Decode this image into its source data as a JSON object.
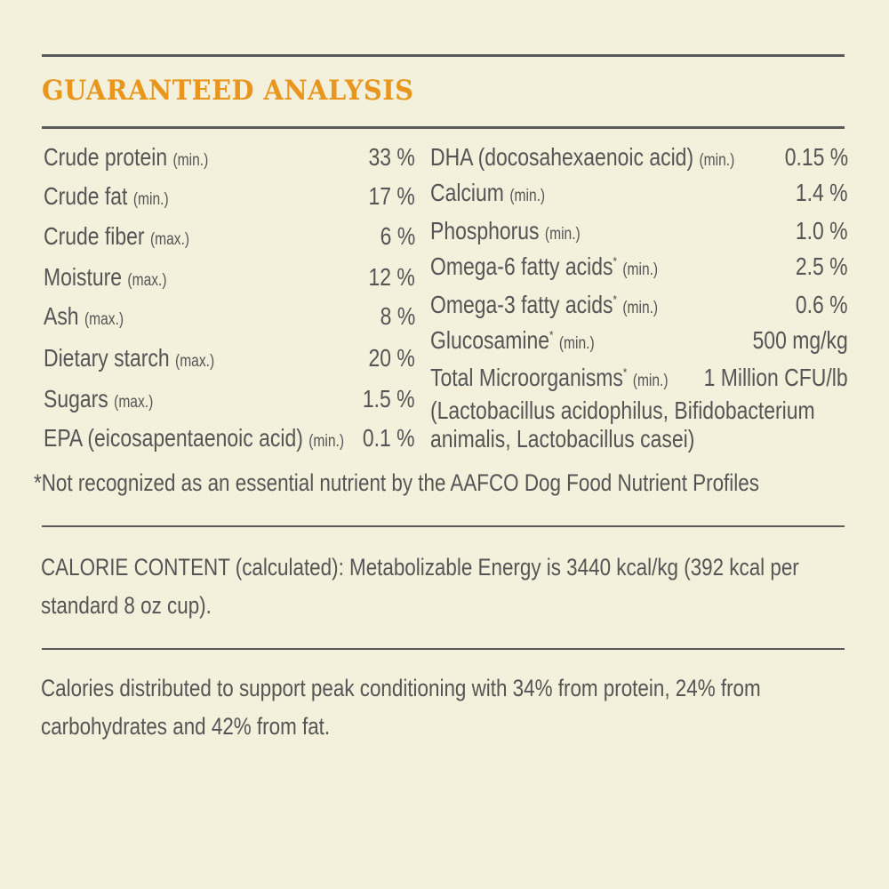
{
  "title": "GUARANTEED ANALYSIS",
  "colors": {
    "background": "#f3f0dc",
    "accent": "#e8961e",
    "text": "#555555"
  },
  "left_column": [
    {
      "name": "Crude protein",
      "qualifier": "(min.)",
      "value": "33 %"
    },
    {
      "name": "Crude fat",
      "qualifier": "(min.)",
      "value": "17 %"
    },
    {
      "name": "Crude fiber",
      "qualifier": "(max.)",
      "value": "6 %"
    },
    {
      "name": "Moisture",
      "qualifier": "(max.)",
      "value": "12 %"
    },
    {
      "name": "Ash",
      "qualifier": "(max.)",
      "value": "8 %"
    },
    {
      "name": "Dietary starch",
      "qualifier": "(max.)",
      "value": "20 %"
    },
    {
      "name": "Sugars",
      "qualifier": "(max.)",
      "value": "1.5 %"
    },
    {
      "name": "EPA (eicosapentaenoic acid)",
      "qualifier": "(min.)",
      "value": "0.1 %"
    }
  ],
  "right_column": [
    {
      "name": "DHA (docosahexaenoic acid)",
      "qualifier": "(min.)",
      "value": "0.15 %"
    },
    {
      "name": "Calcium",
      "qualifier": "(min.)",
      "value": "1.4 %"
    },
    {
      "name": "Phosphorus",
      "qualifier": "(min.)",
      "value": "1.0 %"
    },
    {
      "name": "Omega-6 fatty acids",
      "asterisk": "*",
      "qualifier": "(min.)",
      "value": "2.5 %"
    },
    {
      "name": "Omega-3 fatty acids",
      "asterisk": "*",
      "qualifier": "(min.)",
      "value": "0.6 %"
    },
    {
      "name": "Glucosamine",
      "asterisk": "*",
      "qualifier": "(min.)",
      "value": "500 mg/kg"
    },
    {
      "name": "Total Microorganisms",
      "asterisk": "*",
      "qualifier": "(min.)",
      "value": "1 Million CFU/lb"
    }
  ],
  "microorganisms_detail": [
    "(Lactobacillus acidophilus, Bifidobacterium",
    "animalis, Lactobacillus casei)"
  ],
  "footnote": "*Not recognized as an essential nutrient by the AAFCO Dog Food Nutrient Profiles",
  "calorie_content": "CALORIE CONTENT (calculated): Metabolizable Energy is 3440 kcal/kg (392 kcal per standard 8 oz cup).",
  "calorie_distribution": "Calories distributed to support peak conditioning with 34% from protein, 24% from carbohydrates and 42% from fat."
}
